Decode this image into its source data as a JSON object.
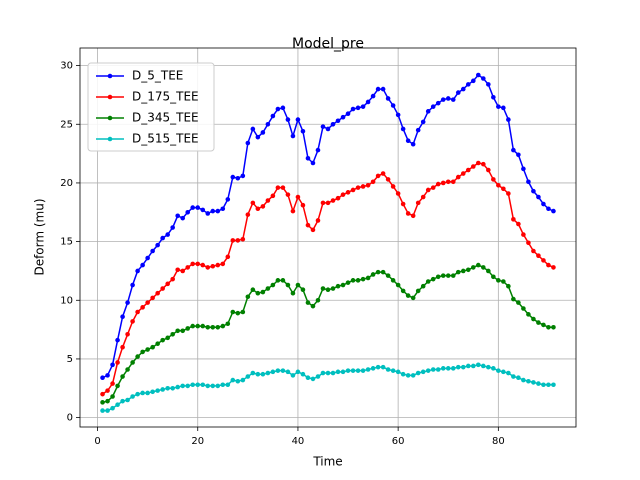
{
  "chart_data": {
    "type": "line",
    "title": "Model_pre",
    "xlabel": "Time",
    "ylabel": "Deform (mu)",
    "x": [
      1,
      2,
      3,
      4,
      5,
      6,
      7,
      8,
      9,
      10,
      11,
      12,
      13,
      14,
      15,
      16,
      17,
      18,
      19,
      20,
      21,
      22,
      23,
      24,
      25,
      26,
      27,
      28,
      29,
      30,
      31,
      32,
      33,
      34,
      35,
      36,
      37,
      38,
      39,
      40,
      41,
      42,
      43,
      44,
      45,
      46,
      47,
      48,
      49,
      50,
      51,
      52,
      53,
      54,
      55,
      56,
      57,
      58,
      59,
      60,
      61,
      62,
      63,
      64,
      65,
      66,
      67,
      68,
      69,
      70,
      71,
      72,
      73,
      74,
      75,
      76,
      77,
      78,
      79,
      80,
      81,
      82,
      83,
      84,
      85,
      86,
      87,
      88,
      89,
      90,
      91
    ],
    "series": [
      {
        "name": "D_5_TEE",
        "color": "#0000ff",
        "values": [
          3.4,
          3.6,
          4.5,
          6.6,
          8.6,
          9.8,
          11.3,
          12.5,
          13.0,
          13.6,
          14.2,
          14.7,
          15.3,
          15.6,
          16.2,
          17.2,
          17.0,
          17.5,
          17.9,
          17.9,
          17.7,
          17.4,
          17.6,
          17.6,
          17.8,
          18.6,
          20.5,
          20.4,
          20.6,
          23.4,
          24.6,
          23.9,
          24.3,
          25.0,
          25.7,
          26.3,
          26.4,
          25.4,
          24.0,
          25.4,
          24.4,
          22.1,
          21.7,
          22.8,
          24.8,
          24.6,
          25.0,
          25.3,
          25.6,
          25.9,
          26.3,
          26.4,
          26.5,
          26.9,
          27.4,
          28.0,
          28.0,
          27.2,
          26.6,
          25.8,
          24.6,
          23.6,
          23.3,
          24.5,
          25.2,
          26.1,
          26.5,
          26.8,
          27.1,
          27.2,
          27.1,
          27.7,
          28.0,
          28.4,
          28.7,
          29.2,
          28.9,
          28.4,
          27.3,
          26.5,
          26.4,
          25.4,
          22.8,
          22.4,
          21.2,
          20.1,
          19.3,
          18.8,
          18.2,
          17.8,
          17.6
        ]
      },
      {
        "name": "D_175_TEE",
        "color": "#ff0000",
        "values": [
          2.0,
          2.3,
          2.9,
          4.7,
          6.0,
          7.1,
          8.2,
          9.0,
          9.4,
          9.8,
          10.2,
          10.6,
          11.0,
          11.4,
          11.8,
          12.6,
          12.5,
          12.8,
          13.1,
          13.1,
          13.0,
          12.8,
          12.9,
          13.0,
          13.1,
          13.7,
          15.1,
          15.1,
          15.2,
          17.3,
          18.3,
          17.8,
          18.0,
          18.5,
          18.9,
          19.6,
          19.6,
          19.0,
          17.6,
          18.8,
          18.1,
          16.4,
          16.0,
          16.8,
          18.3,
          18.3,
          18.5,
          18.7,
          19.0,
          19.2,
          19.4,
          19.6,
          19.7,
          19.8,
          20.1,
          20.6,
          20.8,
          20.3,
          19.7,
          19.1,
          18.2,
          17.4,
          17.2,
          18.3,
          18.8,
          19.4,
          19.6,
          19.9,
          20.0,
          20.1,
          20.1,
          20.5,
          20.8,
          21.1,
          21.4,
          21.7,
          21.6,
          21.1,
          20.3,
          19.8,
          19.5,
          19.1,
          16.9,
          16.5,
          15.6,
          14.9,
          14.2,
          13.8,
          13.4,
          13.0,
          12.8
        ]
      },
      {
        "name": "D_345_TEE",
        "color": "#008000",
        "values": [
          1.3,
          1.4,
          1.8,
          2.7,
          3.5,
          4.1,
          4.7,
          5.2,
          5.6,
          5.8,
          6.0,
          6.3,
          6.6,
          6.8,
          7.1,
          7.4,
          7.4,
          7.6,
          7.8,
          7.8,
          7.8,
          7.7,
          7.7,
          7.7,
          7.8,
          8.0,
          9.0,
          8.9,
          9.0,
          10.3,
          10.9,
          10.6,
          10.7,
          11.0,
          11.3,
          11.7,
          11.7,
          11.3,
          10.6,
          11.3,
          10.9,
          9.8,
          9.5,
          10.0,
          11.0,
          10.9,
          11.0,
          11.2,
          11.3,
          11.5,
          11.7,
          11.7,
          11.8,
          11.9,
          12.2,
          12.4,
          12.4,
          12.1,
          11.7,
          11.3,
          10.8,
          10.4,
          10.2,
          10.8,
          11.2,
          11.6,
          11.8,
          12.0,
          12.1,
          12.1,
          12.1,
          12.4,
          12.5,
          12.6,
          12.8,
          13.0,
          12.8,
          12.5,
          12.0,
          11.7,
          11.6,
          11.2,
          10.1,
          9.8,
          9.3,
          8.8,
          8.4,
          8.1,
          7.9,
          7.7,
          7.7
        ]
      },
      {
        "name": "D_515_TEE",
        "color": "#00bfbf",
        "values": [
          0.6,
          0.6,
          0.8,
          1.1,
          1.4,
          1.5,
          1.8,
          2.0,
          2.1,
          2.1,
          2.2,
          2.3,
          2.4,
          2.5,
          2.5,
          2.6,
          2.7,
          2.7,
          2.8,
          2.8,
          2.8,
          2.7,
          2.7,
          2.7,
          2.8,
          2.8,
          3.2,
          3.1,
          3.2,
          3.5,
          3.8,
          3.7,
          3.7,
          3.8,
          3.9,
          4.0,
          4.0,
          3.9,
          3.6,
          3.9,
          3.7,
          3.4,
          3.3,
          3.5,
          3.8,
          3.8,
          3.8,
          3.9,
          3.9,
          4.0,
          4.0,
          4.0,
          4.0,
          4.1,
          4.2,
          4.3,
          4.3,
          4.1,
          4.0,
          3.9,
          3.7,
          3.6,
          3.6,
          3.8,
          3.9,
          4.0,
          4.1,
          4.1,
          4.2,
          4.2,
          4.2,
          4.3,
          4.3,
          4.4,
          4.4,
          4.5,
          4.4,
          4.3,
          4.2,
          4.0,
          3.9,
          3.8,
          3.5,
          3.4,
          3.2,
          3.1,
          3.0,
          2.9,
          2.8,
          2.8,
          2.8
        ]
      }
    ],
    "xlim": [
      -3.5,
      95.5
    ],
    "ylim": [
      -0.8,
      31.5
    ],
    "xticks": [
      0,
      20,
      40,
      60,
      80
    ],
    "yticks": [
      0,
      5,
      10,
      15,
      20,
      25,
      30
    ],
    "grid": true,
    "legend": "upper left"
  }
}
